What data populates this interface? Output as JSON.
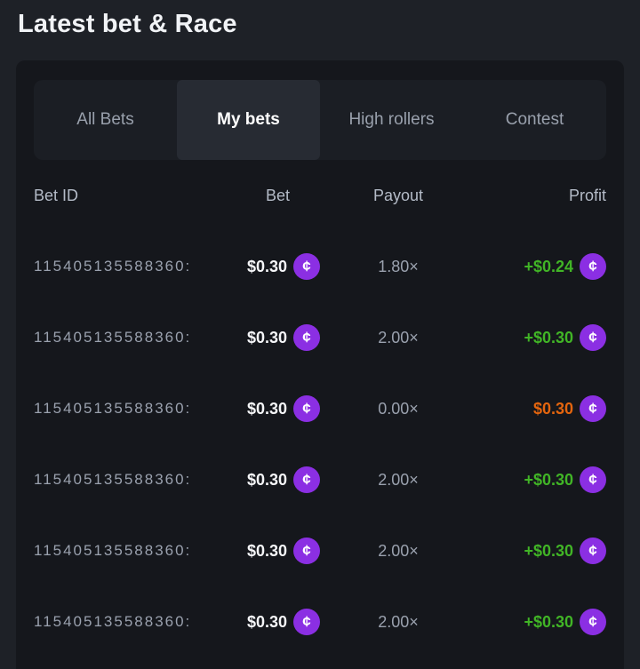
{
  "header": {
    "title": "Latest bet & Race"
  },
  "tabs": {
    "items": [
      {
        "label": "All Bets",
        "active": false
      },
      {
        "label": "My bets",
        "active": true
      },
      {
        "label": "High rollers",
        "active": false
      },
      {
        "label": "Contest",
        "active": false
      }
    ]
  },
  "table": {
    "headers": {
      "bet_id": "Bet ID",
      "bet": "Bet",
      "payout": "Payout",
      "profit": "Profit"
    },
    "rows": [
      {
        "bet_id": "115405135588360:",
        "bet": "$0.30",
        "payout": "1.80×",
        "profit": "+$0.24",
        "profit_state": "win"
      },
      {
        "bet_id": "115405135588360:",
        "bet": "$0.30",
        "payout": "2.00×",
        "profit": "+$0.30",
        "profit_state": "win"
      },
      {
        "bet_id": "115405135588360:",
        "bet": "$0.30",
        "payout": "0.00×",
        "profit": "$0.30",
        "profit_state": "loss"
      },
      {
        "bet_id": "115405135588360:",
        "bet": "$0.30",
        "payout": "2.00×",
        "profit": "+$0.30",
        "profit_state": "win"
      },
      {
        "bet_id": "115405135588360:",
        "bet": "$0.30",
        "payout": "2.00×",
        "profit": "+$0.30",
        "profit_state": "win"
      },
      {
        "bet_id": "115405135588360:",
        "bet": "$0.30",
        "payout": "2.00×",
        "profit": "+$0.30",
        "profit_state": "win"
      }
    ]
  },
  "icons": {
    "currency_symbol": "¢"
  },
  "colors": {
    "profit_win": "#41b526",
    "profit_loss": "#e4650e",
    "coin": "#8b2fe3",
    "active_tab_bg": "#272b33"
  }
}
